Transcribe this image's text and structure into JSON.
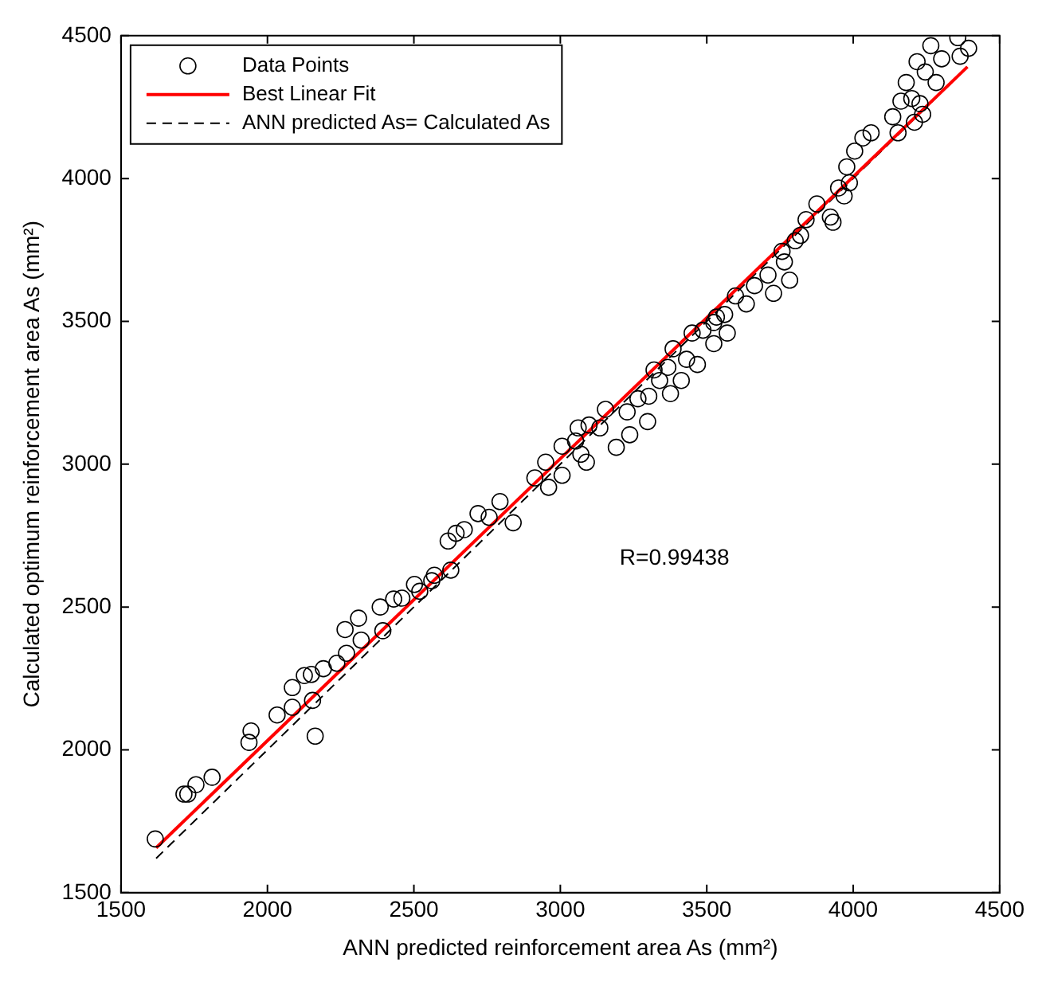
{
  "chart_data": {
    "type": "scatter",
    "xlabel": "ANN predicted reinforcement area As (mm²)",
    "ylabel": "Calculated optimum reinforcement area As (mm²)",
    "xlim": [
      1500,
      4500
    ],
    "ylim": [
      1500,
      4500
    ],
    "xticks": [
      1500,
      2000,
      2500,
      3000,
      3500,
      4000,
      4500
    ],
    "yticks": [
      1500,
      2000,
      2500,
      3000,
      3500,
      4000,
      4500
    ],
    "grid": false,
    "legend": "top left",
    "annotations": [
      "R=0.99438"
    ],
    "series": [
      {
        "name": "Data Points",
        "color": "#000000",
        "marker": "circle",
        "x": [
          1617,
          1715,
          1728,
          1756,
          1811,
          1937,
          1944,
          2033,
          2085,
          2085,
          2154,
          2163,
          2126,
          2150,
          2191,
          2237,
          2270,
          2265,
          2311,
          2320,
          2385,
          2394,
          2431,
          2459,
          2502,
          2520,
          2561,
          2570,
          2626,
          2617,
          2644,
          2672,
          2719,
          2757,
          2794,
          2839,
          2913,
          2960,
          2950,
          3006,
          3006,
          3052,
          3061,
          3098,
          3070,
          3089,
          3135,
          3154,
          3191,
          3237,
          3228,
          3265,
          3298,
          3302,
          3320,
          3339,
          3376,
          3367,
          3385,
          3413,
          3431,
          3468,
          3450,
          3487,
          3524,
          3524,
          3570,
          3561,
          3598,
          3635,
          3533,
          3663,
          3709,
          3728,
          3765,
          3783,
          3757,
          3802,
          3820,
          3839,
          3876,
          3922,
          3931,
          3950,
          3978,
          3969,
          3987,
          4005,
          4033,
          4061,
          4153,
          4135,
          4163,
          4181,
          4209,
          4228,
          4200,
          4218,
          4246,
          4265,
          4302,
          4357,
          4394,
          4365,
          4283,
          4237
        ],
        "values": [
          1688,
          1845,
          1845,
          1878,
          1904,
          2026,
          2066,
          2122,
          2218,
          2149,
          2173,
          2048,
          2260,
          2264,
          2284,
          2303,
          2338,
          2421,
          2461,
          2384,
          2500,
          2417,
          2528,
          2531,
          2579,
          2555,
          2592,
          2611,
          2629,
          2731,
          2758,
          2771,
          2827,
          2814,
          2869,
          2795,
          2952,
          2919,
          3007,
          2961,
          3063,
          3081,
          3127,
          3137,
          3035,
          3007,
          3127,
          3192,
          3059,
          3103,
          3183,
          3229,
          3149,
          3238,
          3330,
          3293,
          3247,
          3339,
          3404,
          3293,
          3367,
          3349,
          3459,
          3469,
          3496,
          3422,
          3459,
          3524,
          3589,
          3561,
          3515,
          3625,
          3662,
          3598,
          3708,
          3644,
          3745,
          3782,
          3801,
          3856,
          3911,
          3865,
          3847,
          3967,
          4041,
          3939,
          3985,
          4096,
          4142,
          4160,
          4160,
          4216,
          4271,
          4336,
          4197,
          4262,
          4280,
          4409,
          4373,
          4465,
          4419,
          4493,
          4456,
          4428,
          4336,
          4225
        ]
      },
      {
        "name": "Best Linear Fit",
        "type": "line",
        "color": "#ff0000",
        "line_style": "solid",
        "marker": "none",
        "x": [
          1620,
          4390
        ],
        "values": [
          1657,
          4391
        ]
      },
      {
        "name": "ANN predicted As= Calculated As",
        "type": "line",
        "color": "#000000",
        "line_style": "dashed",
        "marker": "none",
        "x": [
          1620,
          4390
        ],
        "values": [
          1620,
          4390
        ]
      }
    ]
  }
}
